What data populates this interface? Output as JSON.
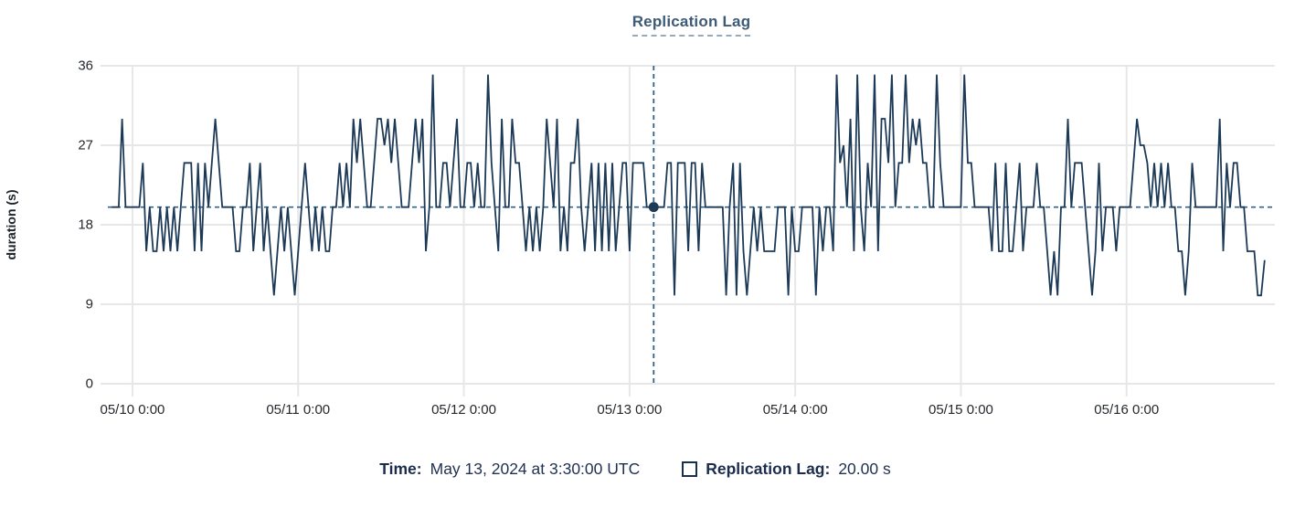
{
  "title": "Replication Lag",
  "y_axis": {
    "label": "duration (s)",
    "ticks": [
      36,
      27,
      18,
      9,
      0
    ]
  },
  "x_axis": {
    "ticks": [
      "05/10 0:00",
      "05/11 0:00",
      "05/12 0:00",
      "05/13 0:00",
      "05/14 0:00",
      "05/15 0:00",
      "05/16 0:00"
    ]
  },
  "tooltip": {
    "time_label": "Time:",
    "time_value": "May 13, 2024 at 3:30:00 UTC",
    "series_label": "Replication Lag:",
    "series_value": "20.00 s"
  },
  "colors": {
    "series_line": "#1c3a57",
    "crosshair": "#2f6286",
    "reference_line": "#2f6286",
    "marker_dot": "#1c3a57",
    "gridline": "#e7e7e7",
    "title_text": "#3d5a76",
    "tick_text": "#24292e",
    "legend_text": "#1b2d4d"
  },
  "chart_data": {
    "type": "line",
    "title": "Replication Lag",
    "xlabel": "",
    "ylabel": "duration (s)",
    "ylim": [
      0,
      36
    ],
    "y_ticks": [
      0,
      9,
      18,
      27,
      36
    ],
    "grid": true,
    "legend_position": "bottom",
    "x_start": "2024-05-09T21:00:00Z",
    "x_step_minutes": 30,
    "x_tick_labels": [
      "05/10 0:00",
      "05/11 0:00",
      "05/12 0:00",
      "05/13 0:00",
      "05/14 0:00",
      "05/15 0:00",
      "05/16 0:00"
    ],
    "x_tick_indices": [
      6,
      54,
      102,
      150,
      198,
      246,
      294
    ],
    "reference_line_y": 20,
    "crosshair": {
      "index": 157,
      "value": 20,
      "time": "May 13, 2024 at 3:30:00 UTC",
      "formatted_value": "20.00 s"
    },
    "series": [
      {
        "name": "Replication Lag",
        "values": [
          20,
          20,
          20,
          30,
          20,
          20,
          20,
          20,
          20,
          25,
          15,
          20,
          15,
          15,
          20,
          15,
          20,
          15,
          20,
          15,
          20,
          25,
          25,
          25,
          15,
          25,
          15,
          25,
          20,
          25,
          30,
          25,
          20,
          20,
          20,
          20,
          15,
          15,
          20,
          20,
          25,
          15,
          20,
          25,
          15,
          20,
          15,
          10,
          15,
          20,
          15,
          20,
          15,
          10,
          15,
          20,
          25,
          20,
          15,
          20,
          15,
          20,
          15,
          15,
          20,
          20,
          25,
          20,
          25,
          20,
          30,
          25,
          30,
          25,
          20,
          20,
          25,
          30,
          30,
          27,
          30,
          25,
          30,
          25,
          20,
          20,
          20,
          25,
          30,
          25,
          30,
          15,
          20,
          35,
          20,
          20,
          25,
          25,
          20,
          25,
          30,
          20,
          20,
          25,
          25,
          20,
          25,
          20,
          20,
          35,
          25,
          20,
          15,
          30,
          20,
          20,
          30,
          25,
          25,
          20,
          15,
          20,
          15,
          20,
          15,
          20,
          30,
          25,
          20,
          30,
          15,
          20,
          15,
          25,
          25,
          30,
          20,
          15,
          20,
          25,
          15,
          25,
          15,
          25,
          15,
          25,
          15,
          20,
          25,
          25,
          15,
          25,
          25,
          25,
          25,
          20,
          20,
          20,
          20,
          20,
          20,
          25,
          25,
          10,
          25,
          25,
          25,
          15,
          25,
          25,
          15,
          25,
          20,
          20,
          20,
          20,
          20,
          20,
          10,
          20,
          25,
          10,
          25,
          15,
          10,
          15,
          20,
          15,
          20,
          15,
          15,
          15,
          15,
          20,
          20,
          20,
          10,
          20,
          15,
          15,
          20,
          20,
          20,
          20,
          10,
          20,
          15,
          20,
          20,
          15,
          35,
          25,
          27,
          20,
          30,
          15,
          35,
          20,
          15,
          25,
          20,
          35,
          15,
          30,
          30,
          25,
          35,
          20,
          25,
          25,
          35,
          25,
          30,
          27,
          30,
          25,
          25,
          20,
          20,
          35,
          25,
          20,
          20,
          20,
          20,
          20,
          20,
          35,
          25,
          25,
          20,
          20,
          20,
          20,
          20,
          15,
          25,
          15,
          15,
          25,
          15,
          15,
          20,
          25,
          15,
          20,
          20,
          20,
          25,
          20,
          20,
          15,
          10,
          15,
          10,
          20,
          20,
          30,
          20,
          25,
          25,
          25,
          20,
          15,
          10,
          15,
          25,
          15,
          20,
          20,
          20,
          15,
          20,
          20,
          20,
          20,
          25,
          30,
          27,
          27,
          25,
          20,
          25,
          20,
          25,
          20,
          25,
          20,
          20,
          15,
          15,
          10,
          15,
          25,
          20,
          20,
          20,
          20,
          20,
          20,
          20,
          30,
          15,
          25,
          20,
          25,
          25,
          20,
          20,
          15,
          15,
          15,
          10,
          10,
          14
        ]
      }
    ]
  }
}
